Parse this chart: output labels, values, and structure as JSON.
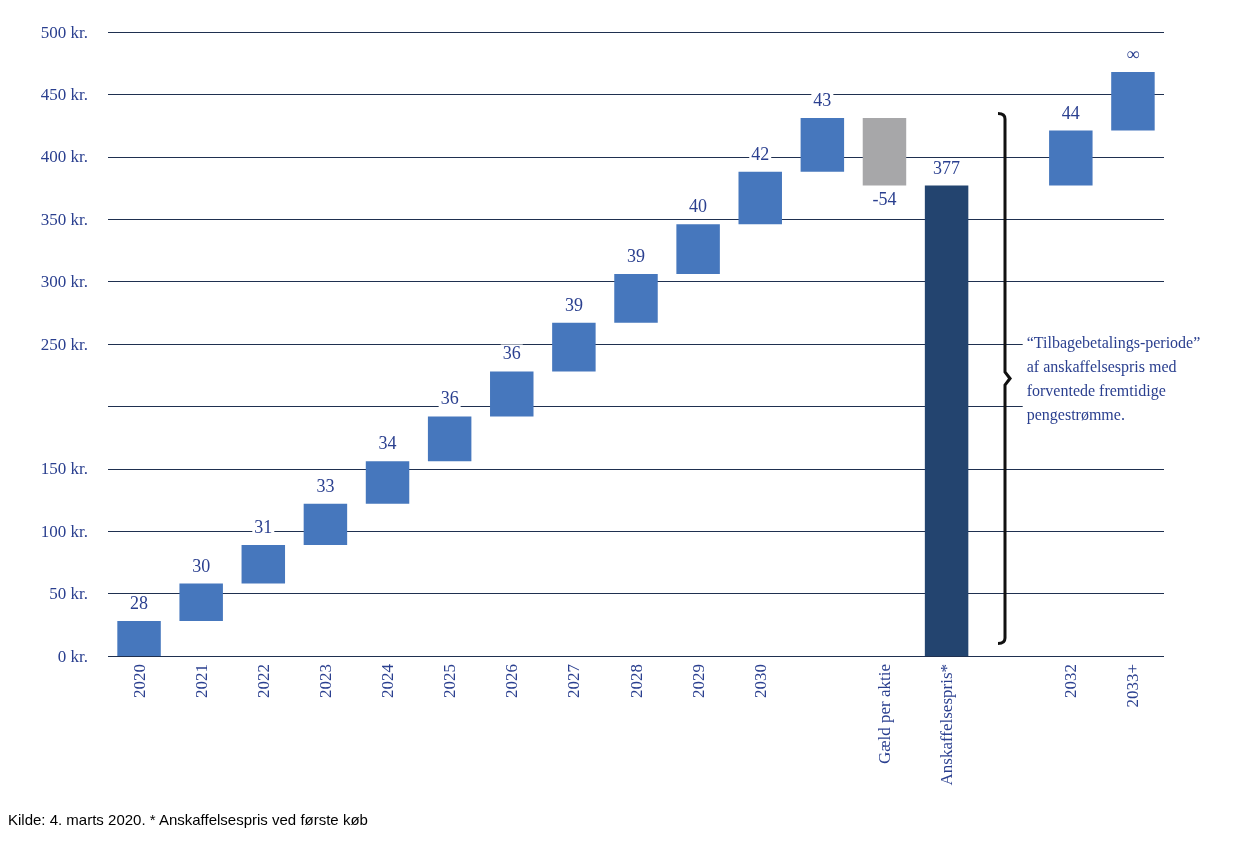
{
  "chart_data": {
    "type": "bar",
    "categories": [
      "2020",
      "2021",
      "2022",
      "2023",
      "2024",
      "2025",
      "2026",
      "2027",
      "2028",
      "2029",
      "2030",
      null,
      "Gæld per aktie",
      "Anskaffelsespris*",
      null,
      "2032",
      "2033+"
    ],
    "values": [
      28,
      30,
      31,
      33,
      34,
      36,
      36,
      39,
      39,
      40,
      42,
      43,
      -54,
      377,
      null,
      44,
      47
    ],
    "base": [
      0,
      28,
      58,
      89,
      122,
      156,
      192,
      228,
      267,
      306,
      346,
      388,
      431,
      0,
      null,
      377,
      421
    ],
    "value_labels": [
      "28",
      "30",
      "31",
      "33",
      "34",
      "36",
      "36",
      "39",
      "39",
      "40",
      "42",
      "43",
      "-54",
      "377",
      null,
      "44",
      "∞"
    ],
    "colors": [
      "#4677bd",
      "#4677bd",
      "#4677bd",
      "#4677bd",
      "#4677bd",
      "#4677bd",
      "#4677bd",
      "#4677bd",
      "#4677bd",
      "#4677bd",
      "#4677bd",
      "#4677bd",
      "#a7a7a9",
      "#23446f",
      null,
      "#4677bd",
      "#4677bd"
    ],
    "ylim": [
      0,
      500
    ],
    "yticks": [
      {
        "value": 0,
        "label": "0 kr."
      },
      {
        "value": 50,
        "label": "50 kr."
      },
      {
        "value": 100,
        "label": "100 kr."
      },
      {
        "value": 150,
        "label": "150 kr."
      },
      {
        "value": 200,
        "label": null
      },
      {
        "value": 250,
        "label": "250 kr."
      },
      {
        "value": 300,
        "label": "300 kr."
      },
      {
        "value": 350,
        "label": "350 kr."
      },
      {
        "value": 400,
        "label": "400 kr."
      },
      {
        "value": 450,
        "label": "450 kr."
      },
      {
        "value": 500,
        "label": "500 kr."
      }
    ],
    "grid": "y",
    "annotations": [
      "“Tilbagebetalings-periode” af anskaffelsespris med forventede fremtidige pengestrømme.",
      "Kilde: 4. marts 2020. * Anskaffelsespris ved første køb"
    ]
  }
}
